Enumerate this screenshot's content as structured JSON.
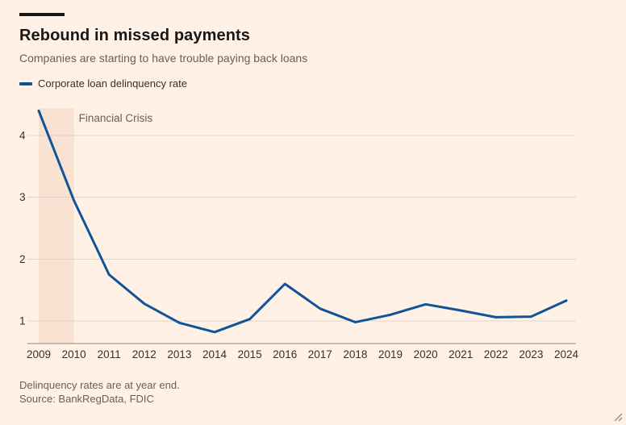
{
  "header": {
    "title": "Rebound in missed payments",
    "subtitle": "Companies are starting to have trouble paying back loans"
  },
  "legend": {
    "label": "Corporate loan delinquency rate"
  },
  "footer": {
    "note": "Delinquency rates are at year end.",
    "source": "Source: BankRegData, FDIC"
  },
  "colors": {
    "background": "#FFF1E5",
    "line": "#0F5499",
    "band": "#FAE2D2",
    "grid": "#E1D4C7",
    "axis_line": "#8F867C",
    "text_dark": "#1A1817",
    "text_muted": "#66605C",
    "tick_text": "#33302E"
  },
  "chart_data": {
    "type": "line",
    "title": "Rebound in missed payments",
    "subtitle": "Companies are starting to have trouble paying back loans",
    "categories": [
      "2009",
      "2010",
      "2011",
      "2012",
      "2013",
      "2014",
      "2015",
      "2016",
      "2017",
      "2018",
      "2019",
      "2020",
      "2021",
      "2022",
      "2023",
      "2024"
    ],
    "series": [
      {
        "name": "Corporate loan delinquency rate",
        "values": [
          4.4,
          2.95,
          1.75,
          1.28,
          0.97,
          0.82,
          1.03,
          1.6,
          1.2,
          0.98,
          1.1,
          1.27,
          1.17,
          1.06,
          1.07,
          1.33
        ]
      }
    ],
    "xlabel": "",
    "ylabel": "",
    "yticks": [
      1,
      2,
      3,
      4
    ],
    "ylim": [
      0.72,
      4.45
    ],
    "grid": "horizontal",
    "legend_position": "top-left",
    "annotations": [
      {
        "type": "band",
        "label": "Financial Crisis",
        "from": "2009",
        "to": "2010"
      }
    ]
  }
}
